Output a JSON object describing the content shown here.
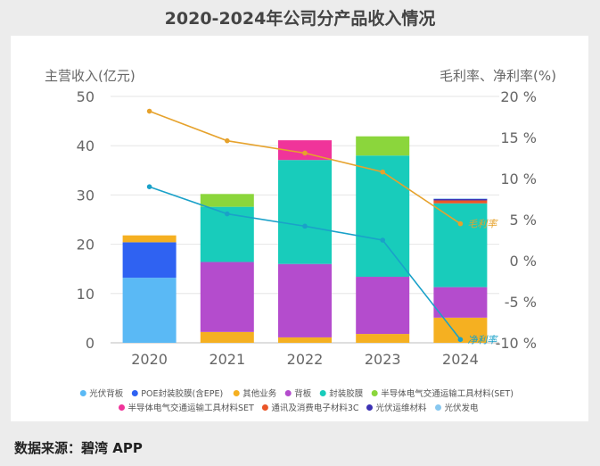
{
  "chart_data": {
    "type": "bar",
    "title": "2020-2024年公司分产品收入情况",
    "ylabel_left": "主营收入(亿元)",
    "ylabel_right": "毛利率、净利率(%)",
    "ylim_left": [
      0,
      50
    ],
    "ylim_right": [
      -10,
      20
    ],
    "left_ticks": [
      "0",
      "10",
      "20",
      "30",
      "40",
      "50"
    ],
    "right_ticks": [
      "-10 %",
      "-5 %",
      "0 %",
      "5 %",
      "10 %",
      "15 %",
      "20 %"
    ],
    "categories": [
      "2020",
      "2021",
      "2022",
      "2023",
      "2024"
    ],
    "bar_series": [
      {
        "name": "光伏背板",
        "color": "#5ab9f5",
        "values": [
          13.2,
          0,
          0,
          0,
          0
        ]
      },
      {
        "name": "POE封装胶膜(含EPE)",
        "color": "#2f62f2",
        "values": [
          7.2,
          0,
          0,
          0,
          0
        ]
      },
      {
        "name": "其他业务",
        "color": "#f5b021",
        "values": [
          1.4,
          2.2,
          1.1,
          1.8,
          5.1
        ]
      },
      {
        "name": "背板",
        "color": "#b44ccd",
        "values": [
          0,
          14.2,
          14.9,
          11.6,
          6.2
        ]
      },
      {
        "name": "封装胶膜",
        "color": "#18ccbb",
        "values": [
          0,
          11.2,
          21.1,
          24.6,
          17.0
        ]
      },
      {
        "name": "半导体电气交通运输工具材料(SET)",
        "color": "#8bd63c",
        "values": [
          0,
          2.6,
          0,
          3.9,
          0
        ]
      },
      {
        "name": "半导体电气交通运输工具材料SET",
        "color": "#f0349a",
        "values": [
          0,
          0,
          4.0,
          0,
          0
        ]
      },
      {
        "name": "通讯及消费电子材料3C",
        "color": "#ea5528",
        "values": [
          0,
          0,
          0,
          0,
          0.6
        ]
      },
      {
        "name": "光伏运维材料",
        "color": "#3c32b4",
        "values": [
          0,
          0,
          0,
          0,
          0.3
        ]
      },
      {
        "name": "光伏发电",
        "color": "#88c8f0",
        "values": [
          0,
          0,
          0,
          0,
          0.1
        ]
      }
    ],
    "line_series": [
      {
        "name": "毛利率",
        "color": "#e6a22c",
        "values": [
          18.2,
          14.6,
          13.1,
          10.8,
          4.5
        ]
      },
      {
        "name": "净利率",
        "color": "#1aa1c9",
        "values": [
          9.0,
          5.7,
          4.2,
          2.5,
          -9.6
        ]
      }
    ]
  },
  "source_text": "数据来源：碧湾 APP"
}
